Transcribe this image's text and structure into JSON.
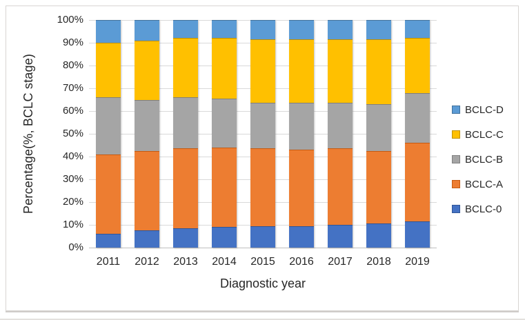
{
  "chart_data": {
    "type": "bar",
    "stacked": true,
    "percent_stacked": true,
    "title": "",
    "xlabel": "Diagnostic year",
    "ylabel": "Percentage(%, BCLC stage)",
    "categories": [
      "2011",
      "2012",
      "2013",
      "2014",
      "2015",
      "2016",
      "2017",
      "2018",
      "2019"
    ],
    "series": [
      {
        "name": "BCLC-0",
        "color": "#4472C4",
        "border_color": "#2F5597",
        "values": [
          6,
          7.5,
          8.5,
          9,
          9.5,
          9.5,
          10,
          10.5,
          11.5
        ]
      },
      {
        "name": "BCLC-A",
        "color": "#ED7D31",
        "border_color": "#C55A11",
        "values": [
          35,
          35,
          35,
          35,
          34,
          33.5,
          33.5,
          32,
          34.5
        ]
      },
      {
        "name": "BCLC-B",
        "color": "#A5A5A5",
        "border_color": "#7F7F7F",
        "values": [
          25,
          22.5,
          22.5,
          21.5,
          20,
          20.5,
          20,
          20.5,
          22
        ]
      },
      {
        "name": "BCLC-C",
        "color": "#FFC000",
        "border_color": "#BF9000",
        "values": [
          24,
          26,
          26,
          26.5,
          28,
          28,
          28,
          28.5,
          24
        ]
      },
      {
        "name": "BCLC-D",
        "color": "#5B9BD5",
        "border_color": "#41719C",
        "values": [
          10,
          9,
          8,
          8,
          8.5,
          8.5,
          8.5,
          8.5,
          8
        ]
      }
    ],
    "y_ticks": [
      "0%",
      "10%",
      "20%",
      "30%",
      "40%",
      "50%",
      "60%",
      "70%",
      "80%",
      "90%",
      "100%"
    ],
    "ylim": [
      0,
      100
    ],
    "grid": true,
    "legend_position": "right",
    "legend_order_top_to_bottom": [
      "BCLC-D",
      "BCLC-C",
      "BCLC-B",
      "BCLC-A",
      "BCLC-0"
    ]
  },
  "colors": {
    "gridline": "#d9d9d9",
    "axis_line": "#bfbfbf",
    "text": "#262626",
    "frame_border": "#d8d5d2",
    "background": "#ffffff"
  }
}
